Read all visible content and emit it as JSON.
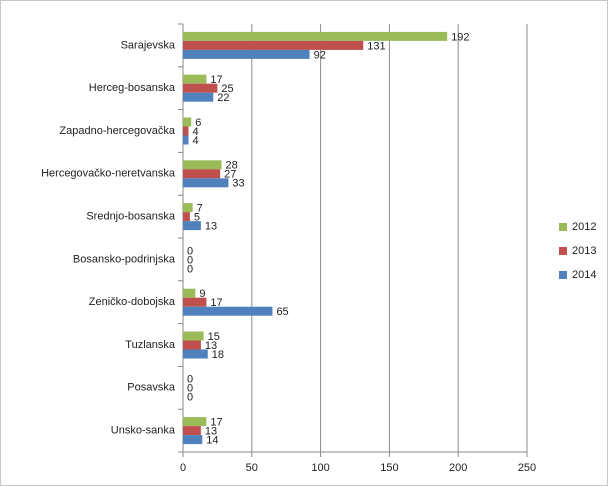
{
  "chart_data": {
    "type": "bar",
    "orientation": "horizontal",
    "categories": [
      "Sarajevska",
      "Herceg-bosanska",
      "Zapadno-hercegovačka",
      "Hercegovačko-neretvanska",
      "Srednjo-bosanska",
      "Bosansko-podrinjska",
      "Zeničko-dobojska",
      "Tuzlanska",
      "Posavska",
      "Unsko-sanka"
    ],
    "series": [
      {
        "name": "2012",
        "color": "#9bbb59",
        "values": [
          192,
          17,
          6,
          28,
          7,
          0,
          9,
          15,
          0,
          17
        ]
      },
      {
        "name": "2013",
        "color": "#c0504d",
        "values": [
          131,
          25,
          4,
          27,
          5,
          0,
          17,
          13,
          0,
          13
        ]
      },
      {
        "name": "2014",
        "color": "#4f81bd",
        "values": [
          92,
          22,
          4,
          33,
          13,
          0,
          65,
          18,
          0,
          14
        ]
      }
    ],
    "xlim": [
      0,
      250
    ],
    "xticks": [
      0,
      50,
      100,
      150,
      200,
      250
    ],
    "grid": true,
    "legend": "right"
  }
}
